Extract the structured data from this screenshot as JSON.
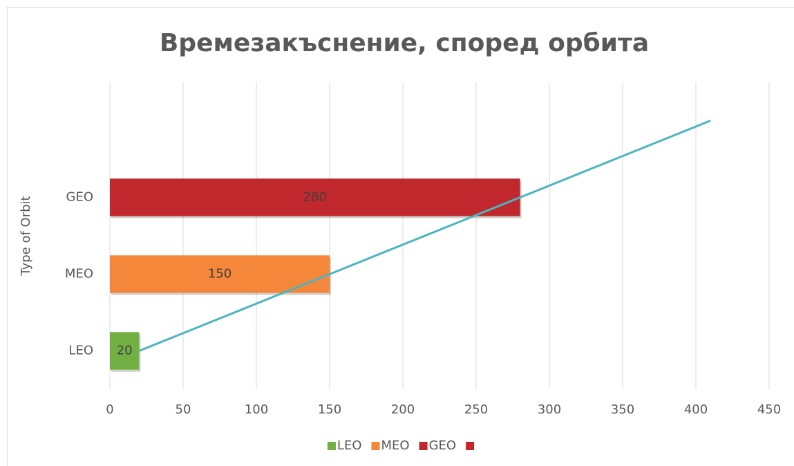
{
  "chart_data": {
    "type": "hbar",
    "title": "Времезакъснение, според орбита",
    "y_axis_label": "Type of Orbit",
    "categories": [
      "LEO",
      "MEO",
      "GEO",
      null
    ],
    "values": [
      20,
      150,
      280,
      null
    ],
    "colors": [
      "#72b043",
      "#f5873a",
      "#c0282d",
      "#c0282d"
    ],
    "trendline": {
      "values": [
        20,
        150,
        280,
        410
      ],
      "color": "#4bb5bf"
    },
    "xlim": [
      0,
      450
    ],
    "xticks": [
      0,
      50,
      100,
      150,
      200,
      250,
      300,
      350,
      400,
      450
    ],
    "grid": true,
    "legend": "bottom"
  }
}
